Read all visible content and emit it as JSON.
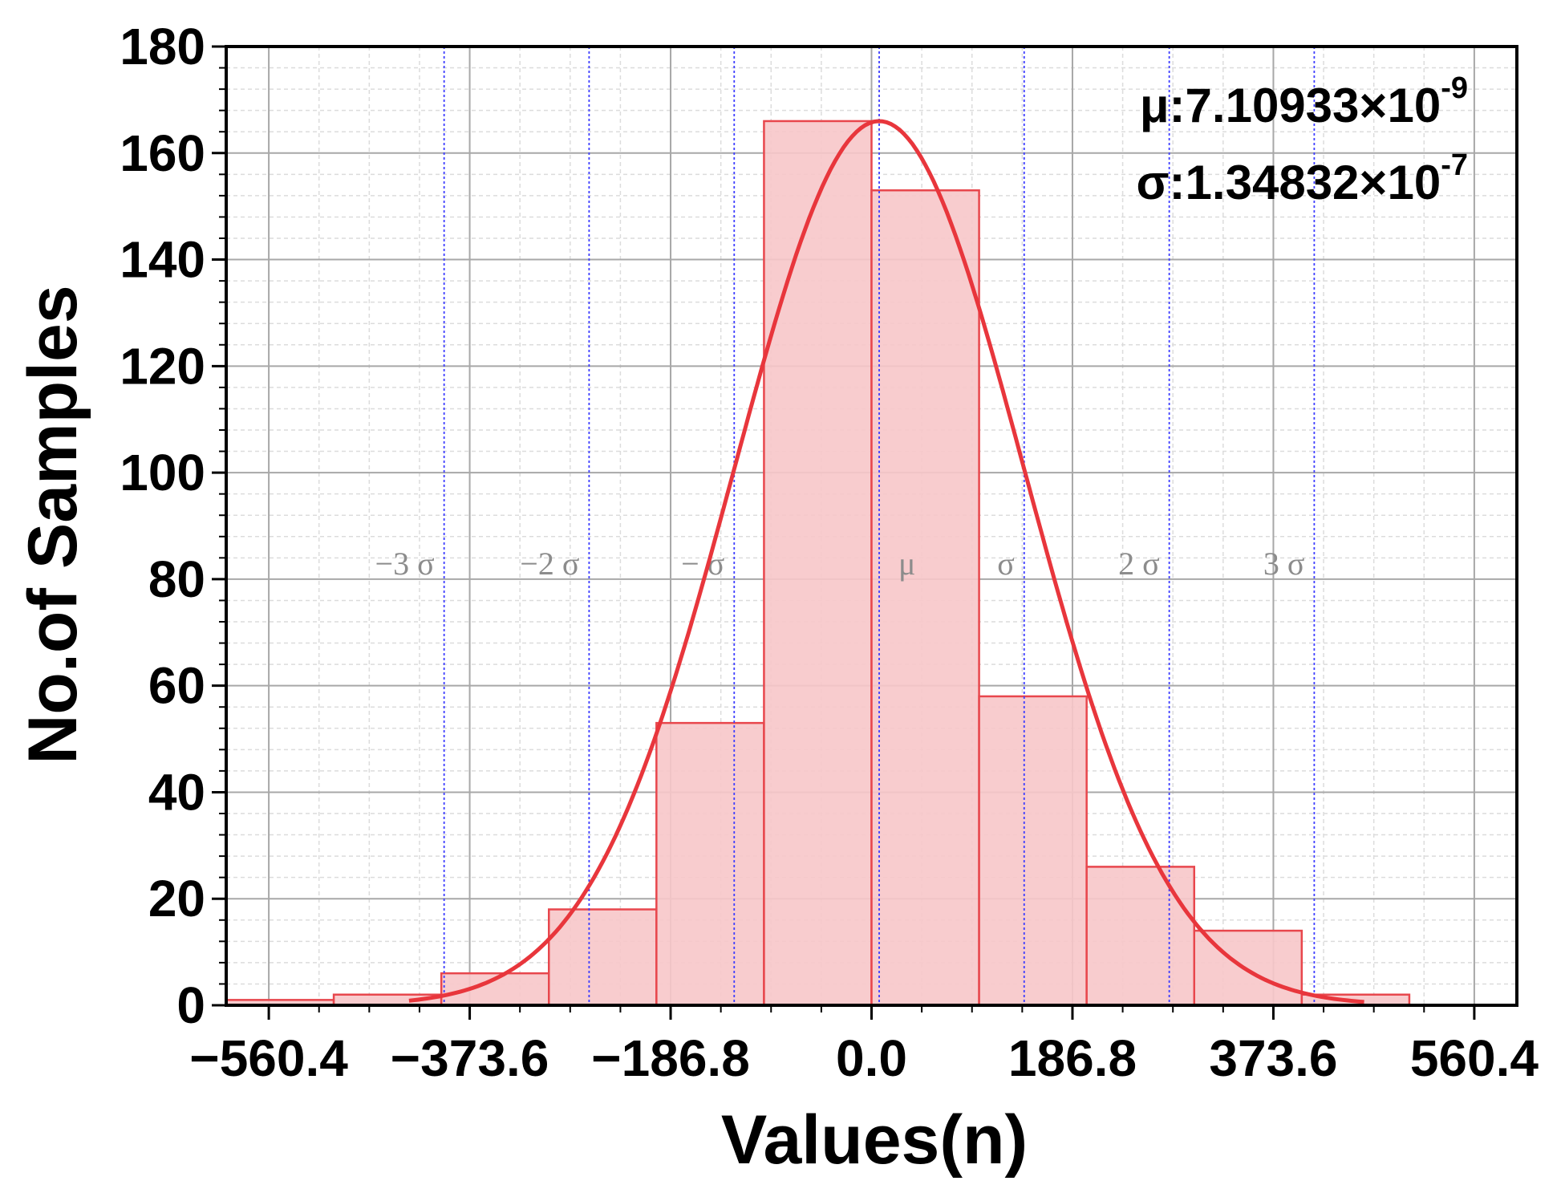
{
  "chart_data": {
    "type": "bar",
    "subtype": "histogram",
    "xlabel": "Values(n)",
    "ylabel": "No.of Samples",
    "xlim": [
      -600,
      600
    ],
    "ylim": [
      0,
      180
    ],
    "x_ticks": [
      -560.4,
      -373.6,
      -186.8,
      0.0,
      186.8,
      373.6,
      560.4
    ],
    "x_tick_labels": [
      "−560.4",
      "−373.6",
      "−186.8",
      "0.0",
      "186.8",
      "373.6",
      "560.4"
    ],
    "y_ticks": [
      0,
      20,
      40,
      60,
      80,
      100,
      120,
      140,
      160,
      180
    ],
    "y_tick_labels": [
      "0",
      "20",
      "40",
      "60",
      "80",
      "100",
      "120",
      "140",
      "160",
      "180"
    ],
    "grid": true,
    "bins": [
      {
        "x0": -600,
        "x1": -500,
        "count": 1
      },
      {
        "x0": -500,
        "x1": -400,
        "count": 2
      },
      {
        "x0": -400,
        "x1": -300,
        "count": 6
      },
      {
        "x0": -300,
        "x1": -200,
        "count": 18
      },
      {
        "x0": -200,
        "x1": -100,
        "count": 53
      },
      {
        "x0": -100,
        "x1": 0,
        "count": 166
      },
      {
        "x0": 0,
        "x1": 100,
        "count": 153
      },
      {
        "x0": 100,
        "x1": 200,
        "count": 58
      },
      {
        "x0": 200,
        "x1": 300,
        "count": 26
      },
      {
        "x0": 300,
        "x1": 400,
        "count": 14
      },
      {
        "x0": 400,
        "x1": 500,
        "count": 2
      }
    ],
    "fit_curve": {
      "type": "normal",
      "mean": 7.1,
      "sigma": 134.8,
      "peak": 166,
      "x_range": [
        -430,
        460
      ]
    },
    "sigma_lines": [
      {
        "x": -397.4,
        "label": "−3 σ"
      },
      {
        "x": -262.6,
        "label": "−2 σ"
      },
      {
        "x": -127.7,
        "label": "− σ"
      },
      {
        "x": 7.1,
        "label": "μ"
      },
      {
        "x": 141.9,
        "label": "σ"
      },
      {
        "x": 276.8,
        "label": "2 σ"
      },
      {
        "x": 411.6,
        "label": "3 σ"
      }
    ],
    "sigma_label_y": 83,
    "annotations": [
      {
        "prefix": "μ:7.10933×10",
        "exponent": "-9"
      },
      {
        "prefix": "σ:1.34832×10",
        "exponent": "-7"
      }
    ],
    "colors": {
      "bar_fill": "#f7c6c9",
      "bar_stroke": "#e8474d",
      "curve": "#e8363c",
      "sigma_line": "#3d3dff",
      "major_grid": "#a8a8a8",
      "minor_grid": "#dcdcdc"
    }
  }
}
